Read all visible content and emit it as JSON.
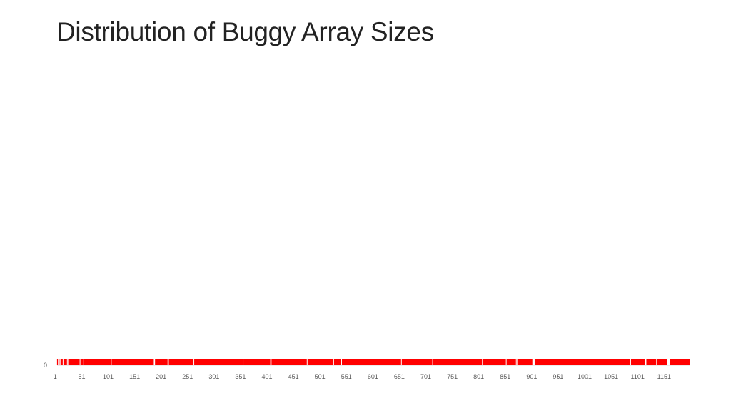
{
  "slide": {
    "title": "Distribution of Buggy Array Sizes"
  },
  "chart_data": {
    "type": "bar",
    "title": "",
    "xlabel": "",
    "ylabel": "",
    "x_range": [
      1,
      1200
    ],
    "y_ticks": [
      "0"
    ],
    "x_ticks": [
      "1",
      "51",
      "101",
      "151",
      "201",
      "251",
      "301",
      "351",
      "401",
      "451",
      "501",
      "551",
      "601",
      "651",
      "701",
      "751",
      "801",
      "851",
      "901",
      "951",
      "1001",
      "1051",
      "1101",
      "1151"
    ],
    "bar_color": "#ff0000",
    "gap_ranges": [
      [
        1,
        3
      ],
      [
        4,
        5
      ],
      [
        7,
        8
      ],
      [
        9,
        10
      ],
      [
        11,
        12
      ],
      [
        16,
        17
      ],
      [
        24,
        25
      ],
      [
        26,
        27
      ],
      [
        48,
        49
      ],
      [
        55,
        56
      ],
      [
        107,
        108
      ],
      [
        188,
        190
      ],
      [
        214,
        216
      ],
      [
        263,
        264
      ],
      [
        356,
        357
      ],
      [
        408,
        410
      ],
      [
        477,
        478
      ],
      [
        527,
        528
      ],
      [
        542,
        543
      ],
      [
        655,
        656
      ],
      [
        714,
        715
      ],
      [
        808,
        809
      ],
      [
        853,
        854
      ],
      [
        872,
        873
      ],
      [
        874,
        876
      ],
      [
        903,
        907
      ],
      [
        1088,
        1089
      ],
      [
        1116,
        1118
      ],
      [
        1137,
        1138
      ],
      [
        1158,
        1162
      ]
    ],
    "series": [
      {
        "values_note": "",
        "bar_height": 1
      }
    ],
    "grid": false,
    "legend": "none"
  }
}
